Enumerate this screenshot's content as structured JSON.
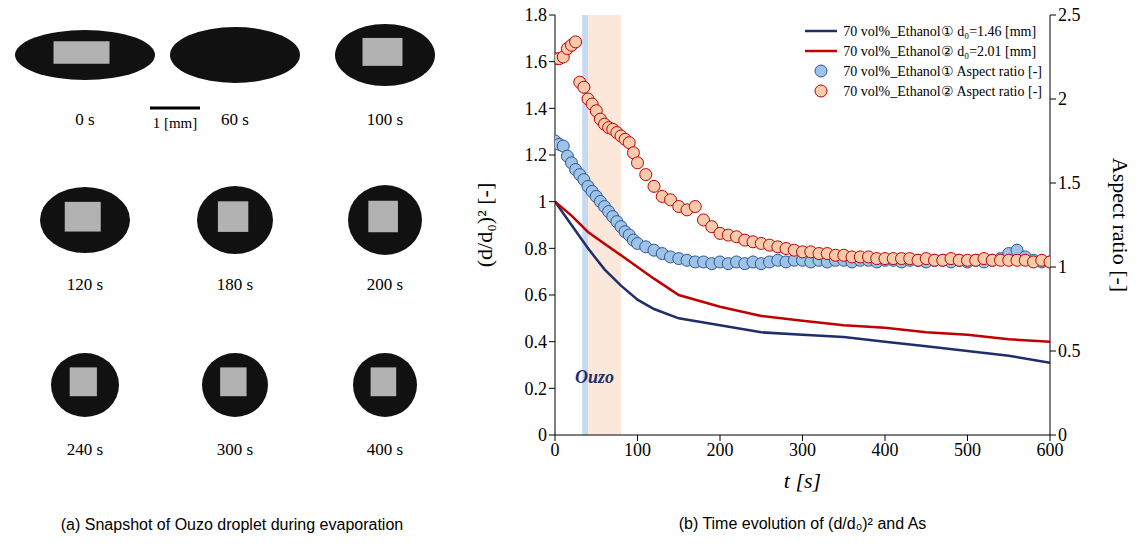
{
  "snapshots": {
    "title": "(a) Snapshot of Ouzo droplet during evaporation",
    "scale_bar": "1 [mm]",
    "frames": [
      "0 s",
      "60 s",
      "100 s",
      "120 s",
      "180 s",
      "200 s",
      "240 s",
      "300 s",
      "400 s"
    ]
  },
  "chart_data": {
    "type": "line",
    "title": "(b) Time evolution of (d/d₀)² and As",
    "x_label": "t [s]",
    "y_label": "(d/d₀)² [-]",
    "y2_label": "Aspect ratio [-]",
    "xlim": [
      0,
      600
    ],
    "xticks": [
      0,
      100,
      200,
      300,
      400,
      500,
      600
    ],
    "ylim": [
      0,
      1.8
    ],
    "yticks": [
      0,
      0.2,
      0.4,
      0.6,
      0.8,
      1,
      1.2,
      1.4,
      1.6,
      1.8
    ],
    "y2lim": [
      0,
      2.5
    ],
    "y2ticks": [
      0,
      0.5,
      1,
      1.5,
      2,
      2.5
    ],
    "grid": false,
    "legend": "upper right",
    "bands": [
      {
        "x": [
          33,
          40
        ],
        "color": "#bdd7ee"
      },
      {
        "x": [
          40,
          80
        ],
        "color": "#fbe5d6"
      }
    ],
    "annotations": [
      {
        "text": "Ouzo",
        "x": 48,
        "y": 0.25
      }
    ],
    "series": [
      {
        "name": "70 vol%_Ethanol①  d₀=1.46 [mm]",
        "type": "line",
        "line_style": "solid",
        "color": "#1f2d6b",
        "x": [
          0,
          20,
          40,
          60,
          80,
          100,
          120,
          150,
          200,
          250,
          300,
          350,
          400,
          450,
          500,
          550,
          600
        ],
        "values": [
          1,
          0.9,
          0.8,
          0.71,
          0.64,
          0.58,
          0.54,
          0.5,
          0.47,
          0.44,
          0.43,
          0.42,
          0.4,
          0.38,
          0.36,
          0.34,
          0.31
        ]
      },
      {
        "name": "70 vol%_Ethanol②  d₀=2.01 [mm]",
        "type": "line",
        "line_style": "solid",
        "color": "#c00000",
        "x": [
          0,
          20,
          40,
          60,
          80,
          100,
          120,
          150,
          200,
          250,
          300,
          350,
          400,
          450,
          500,
          550,
          600
        ],
        "values": [
          1,
          0.94,
          0.87,
          0.82,
          0.77,
          0.72,
          0.67,
          0.6,
          0.55,
          0.51,
          0.49,
          0.47,
          0.46,
          0.44,
          0.43,
          0.41,
          0.4
        ]
      },
      {
        "name": "70 vol%_Ethanol①  Aspect ratio [-]",
        "type": "scatter",
        "marker": "circle",
        "axis": "y2",
        "color": "#9dc3e6",
        "x": [
          0,
          5,
          10,
          15,
          20,
          25,
          30,
          35,
          40,
          45,
          50,
          55,
          60,
          65,
          70,
          75,
          80,
          85,
          90,
          95,
          100,
          110,
          120,
          130,
          140,
          150,
          160,
          170,
          180,
          190,
          200,
          210,
          220,
          230,
          240,
          250,
          260,
          270,
          280,
          290,
          300,
          310,
          320,
          330,
          340,
          350,
          360,
          370,
          380,
          390,
          400,
          410,
          420,
          430,
          440,
          450,
          460,
          470,
          480,
          490,
          500,
          510,
          520,
          530,
          540,
          550,
          560,
          570,
          580,
          590,
          600
        ],
        "values": [
          1.75,
          1.73,
          1.72,
          1.66,
          1.62,
          1.58,
          1.55,
          1.52,
          1.48,
          1.45,
          1.42,
          1.39,
          1.36,
          1.33,
          1.3,
          1.27,
          1.24,
          1.21,
          1.19,
          1.16,
          1.14,
          1.12,
          1.1,
          1.08,
          1.06,
          1.05,
          1.04,
          1.03,
          1.03,
          1.02,
          1.03,
          1.02,
          1.03,
          1.02,
          1.03,
          1.02,
          1.03,
          1.04,
          1.03,
          1.04,
          1.04,
          1.03,
          1.04,
          1.03,
          1.04,
          1.04,
          1.03,
          1.04,
          1.04,
          1.03,
          1.04,
          1.04,
          1.03,
          1.04,
          1.04,
          1.03,
          1.04,
          1.04,
          1.03,
          1.04,
          1.03,
          1.04,
          1.03,
          1.04,
          1.05,
          1.08,
          1.1,
          1.06,
          1.04,
          1.03,
          1.03
        ]
      },
      {
        "name": "70 vol%_Ethanol②  Aspect ratio [-]",
        "type": "scatter",
        "marker": "circle",
        "axis": "y2",
        "color": "#f8cbad",
        "x": [
          0,
          5,
          10,
          15,
          20,
          25,
          30,
          35,
          40,
          45,
          50,
          55,
          60,
          65,
          70,
          75,
          80,
          85,
          90,
          95,
          100,
          110,
          120,
          130,
          140,
          150,
          160,
          170,
          180,
          190,
          200,
          210,
          220,
          230,
          240,
          250,
          260,
          270,
          280,
          290,
          300,
          310,
          320,
          330,
          340,
          350,
          360,
          370,
          380,
          390,
          400,
          410,
          420,
          430,
          440,
          450,
          460,
          470,
          480,
          490,
          500,
          510,
          520,
          530,
          540,
          550,
          560,
          570,
          580,
          590,
          600
        ],
        "values": [
          2.24,
          2.24,
          2.25,
          2.3,
          2.32,
          2.34,
          2.1,
          2.07,
          2.0,
          1.97,
          1.93,
          1.88,
          1.85,
          1.83,
          1.82,
          1.8,
          1.78,
          1.76,
          1.74,
          1.68,
          1.62,
          1.55,
          1.48,
          1.42,
          1.4,
          1.36,
          1.34,
          1.36,
          1.28,
          1.24,
          1.2,
          1.19,
          1.18,
          1.16,
          1.15,
          1.14,
          1.13,
          1.12,
          1.11,
          1.1,
          1.09,
          1.09,
          1.08,
          1.08,
          1.07,
          1.07,
          1.06,
          1.06,
          1.06,
          1.05,
          1.05,
          1.05,
          1.05,
          1.05,
          1.04,
          1.05,
          1.04,
          1.04,
          1.05,
          1.04,
          1.04,
          1.04,
          1.05,
          1.04,
          1.04,
          1.04,
          1.04,
          1.04,
          1.03,
          1.04,
          1.03
        ]
      }
    ]
  }
}
